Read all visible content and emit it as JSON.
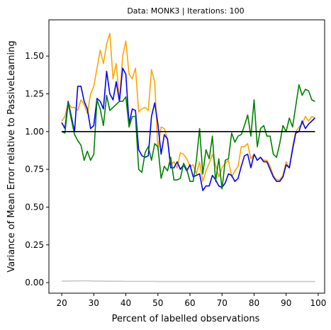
{
  "chart_data": {
    "type": "line",
    "title": "Data: MONK3 | Iterations: 100",
    "xlabel": "Percent of labelled observations",
    "ylabel": "Variance of Mean Error relative to PassiveLearning",
    "xlim": [
      16.0,
      102.0
    ],
    "ylim": [
      -0.07,
      1.74
    ],
    "xticks": [
      20,
      30,
      40,
      50,
      60,
      70,
      80,
      90,
      100
    ],
    "yticks": [
      0.0,
      0.25,
      0.5,
      0.75,
      1.0,
      1.25,
      1.5
    ],
    "ytick_labels": [
      "0.00",
      "0.25",
      "0.50",
      "0.75",
      "1.00",
      "1.25",
      "1.50"
    ],
    "grid": false,
    "legend": "none",
    "x": [
      20,
      21,
      22,
      23,
      24,
      25,
      26,
      27,
      28,
      29,
      30,
      31,
      32,
      33,
      34,
      35,
      36,
      37,
      38,
      39,
      40,
      41,
      42,
      43,
      44,
      45,
      46,
      47,
      48,
      49,
      50,
      51,
      52,
      53,
      54,
      55,
      56,
      57,
      58,
      59,
      60,
      61,
      62,
      63,
      64,
      65,
      66,
      67,
      68,
      69,
      70,
      71,
      72,
      73,
      74,
      75,
      76,
      77,
      78,
      79,
      80,
      81,
      82,
      83,
      84,
      85,
      86,
      87,
      88,
      89,
      90,
      91,
      92,
      93,
      94,
      95,
      96,
      97,
      98,
      99
    ],
    "series": [
      {
        "color": "#ffa500",
        "values": [
          1.07,
          1.1,
          1.19,
          1.16,
          1.16,
          1.14,
          1.21,
          1.18,
          1.12,
          1.25,
          1.3,
          1.42,
          1.54,
          1.45,
          1.58,
          1.65,
          1.35,
          1.45,
          1.2,
          1.5,
          1.6,
          1.38,
          1.35,
          1.42,
          1.13,
          1.15,
          1.16,
          1.14,
          1.41,
          1.33,
          0.88,
          1.03,
          1.02,
          0.95,
          0.78,
          0.8,
          0.76,
          0.86,
          0.85,
          0.82,
          0.77,
          0.78,
          0.72,
          0.8,
          0.67,
          0.74,
          0.79,
          0.85,
          0.78,
          0.7,
          0.76,
          0.79,
          0.81,
          0.7,
          0.74,
          0.77,
          0.9,
          0.9,
          0.92,
          0.82,
          0.85,
          0.81,
          0.83,
          0.81,
          0.81,
          0.77,
          0.71,
          0.68,
          0.68,
          0.71,
          0.8,
          0.76,
          0.9,
          1.0,
          1.03,
          1.05,
          1.1,
          1.07,
          1.1,
          1.09
        ]
      },
      {
        "color": "#0000ff",
        "values": [
          1.06,
          1.02,
          1.2,
          1.1,
          1.0,
          1.3,
          1.3,
          1.2,
          1.15,
          1.02,
          1.04,
          1.22,
          1.2,
          1.15,
          1.4,
          1.25,
          1.21,
          1.33,
          1.2,
          1.42,
          1.38,
          1.05,
          1.15,
          1.14,
          0.88,
          0.84,
          0.83,
          0.84,
          1.1,
          1.19,
          1.05,
          0.85,
          0.98,
          0.95,
          0.76,
          0.76,
          0.8,
          0.75,
          0.78,
          0.74,
          0.78,
          0.7,
          0.71,
          0.72,
          0.61,
          0.64,
          0.64,
          0.71,
          0.68,
          0.64,
          0.63,
          0.66,
          0.72,
          0.71,
          0.67,
          0.69,
          0.77,
          0.84,
          0.85,
          0.76,
          0.85,
          0.81,
          0.83,
          0.8,
          0.8,
          0.75,
          0.7,
          0.67,
          0.67,
          0.7,
          0.78,
          0.76,
          0.88,
          0.99,
          1.0,
          1.07,
          1.02,
          1.05,
          1.07,
          1.09
        ]
      },
      {
        "color": "#008000",
        "values": [
          1.0,
          0.99,
          1.19,
          1.08,
          0.98,
          0.94,
          0.91,
          0.81,
          0.87,
          0.81,
          0.85,
          1.21,
          1.15,
          1.04,
          1.24,
          1.14,
          1.16,
          1.18,
          1.2,
          1.2,
          1.23,
          1.03,
          1.1,
          1.1,
          0.75,
          0.73,
          0.86,
          0.9,
          0.81,
          0.92,
          0.9,
          0.69,
          0.77,
          0.74,
          0.83,
          0.68,
          0.68,
          0.69,
          0.79,
          0.75,
          0.67,
          0.67,
          0.81,
          1.02,
          0.72,
          0.88,
          0.82,
          0.97,
          0.67,
          0.82,
          0.62,
          0.81,
          0.82,
          0.99,
          0.93,
          0.97,
          0.98,
          1.04,
          1.11,
          0.97,
          1.21,
          0.9,
          1.02,
          1.04,
          0.97,
          0.97,
          0.85,
          0.83,
          0.92,
          1.04,
          1.0,
          1.09,
          1.03,
          1.17,
          1.31,
          1.24,
          1.28,
          1.27,
          1.21,
          1.2
        ]
      },
      {
        "color": "#000000",
        "values": [
          1.0,
          1.0,
          1.0,
          1.0,
          1.0,
          1.0,
          1.0,
          1.0,
          1.0,
          1.0,
          1.0,
          1.0,
          1.0,
          1.0,
          1.0,
          1.0,
          1.0,
          1.0,
          1.0,
          1.0,
          1.0,
          1.0,
          1.0,
          1.0,
          1.0,
          1.0,
          1.0,
          1.0,
          1.0,
          1.0,
          1.0,
          1.0,
          1.0,
          1.0,
          1.0,
          1.0,
          1.0,
          1.0,
          1.0,
          1.0,
          1.0,
          1.0,
          1.0,
          1.0,
          1.0,
          1.0,
          1.0,
          1.0,
          1.0,
          1.0,
          1.0,
          1.0,
          1.0,
          1.0,
          1.0,
          1.0,
          1.0,
          1.0,
          1.0,
          1.0,
          1.0,
          1.0,
          1.0,
          1.0,
          1.0,
          1.0,
          1.0,
          1.0,
          1.0,
          1.0,
          1.0,
          1.0,
          1.0,
          1.0,
          1.0,
          1.0,
          1.0,
          1.0,
          1.0,
          1.0
        ]
      },
      {
        "color": "#c8c8c8",
        "values": [
          0.01,
          0.01,
          0.01,
          0.011,
          0.011,
          0.011,
          0.012,
          0.012,
          0.011,
          0.011,
          0.01,
          0.01,
          0.01,
          0.01,
          0.009,
          0.009,
          0.009,
          0.009,
          0.009,
          0.009,
          0.008,
          0.008,
          0.008,
          0.008,
          0.008,
          0.008,
          0.008,
          0.008,
          0.008,
          0.008,
          0.007,
          0.007,
          0.007,
          0.007,
          0.007,
          0.007,
          0.007,
          0.007,
          0.007,
          0.007,
          0.007,
          0.007,
          0.007,
          0.007,
          0.007,
          0.007,
          0.007,
          0.007,
          0.007,
          0.007,
          0.007,
          0.007,
          0.007,
          0.007,
          0.007,
          0.007,
          0.007,
          0.007,
          0.007,
          0.007,
          0.007,
          0.007,
          0.007,
          0.007,
          0.007,
          0.007,
          0.007,
          0.007,
          0.007,
          0.007,
          0.007,
          0.007,
          0.007,
          0.007,
          0.007,
          0.007,
          0.007,
          0.007,
          0.007,
          0.007
        ]
      }
    ]
  }
}
